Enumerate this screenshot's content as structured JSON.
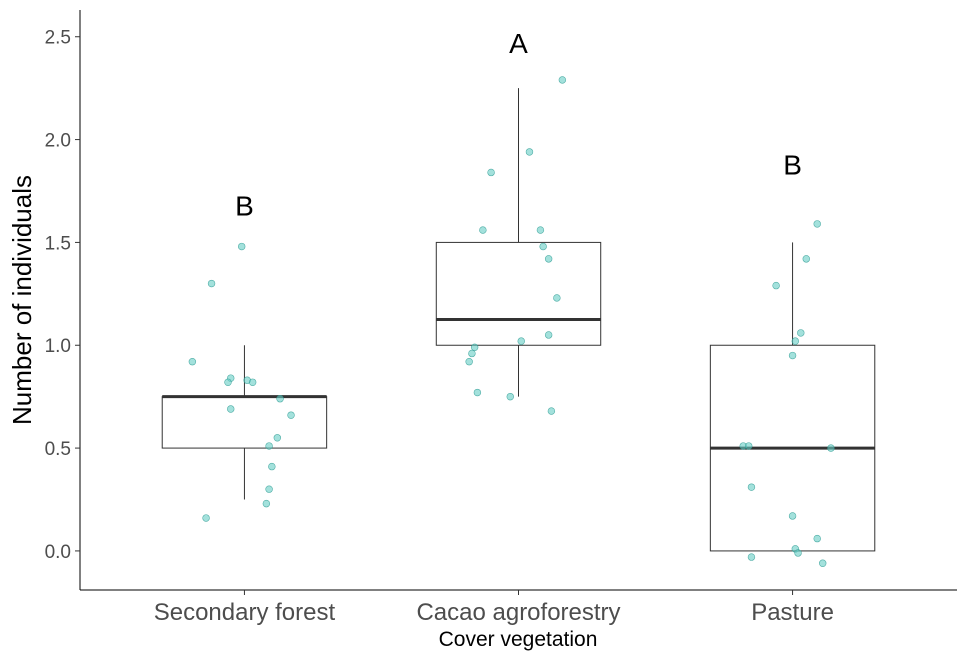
{
  "chart_data": {
    "type": "boxplot",
    "xlabel": "Cover vegetation",
    "ylabel": "Number of individuals",
    "ylim": [
      -0.19,
      2.63
    ],
    "yticks": [
      "0.0",
      "0.5",
      "1.0",
      "1.5",
      "2.0",
      "2.5"
    ],
    "ytick_values": [
      0,
      0.5,
      1.0,
      1.5,
      2.0,
      2.5
    ],
    "categories": [
      "Secondary forest",
      "Cacao agroforestry",
      "Pasture"
    ],
    "grid": false,
    "point_color": "#66CDC4",
    "boxes": [
      {
        "category": "Secondary forest",
        "whisker_low": 0.25,
        "q1": 0.5,
        "median": 0.75,
        "q3": 0.75,
        "whisker_high": 1.0,
        "letter": "B",
        "letter_y": 1.68
      },
      {
        "category": "Cacao agroforestry",
        "whisker_low": 0.75,
        "q1": 1.0,
        "median": 1.125,
        "q3": 1.5,
        "whisker_high": 2.25,
        "letter": "A",
        "letter_y": 2.47
      },
      {
        "category": "Pasture",
        "whisker_low": 0.0,
        "q1": 0.0,
        "median": 0.5,
        "q3": 1.0,
        "whisker_high": 1.5,
        "letter": "B",
        "letter_y": 1.88
      }
    ],
    "points": [
      [
        [
          -0.01,
          1.48
        ],
        [
          -0.12,
          1.3
        ],
        [
          -0.19,
          0.92
        ],
        [
          -0.05,
          0.84
        ],
        [
          -0.06,
          0.82
        ],
        [
          0.01,
          0.83
        ],
        [
          0.03,
          0.82
        ],
        [
          0.13,
          0.74
        ],
        [
          -0.05,
          0.69
        ],
        [
          0.17,
          0.66
        ],
        [
          0.12,
          0.55
        ],
        [
          0.09,
          0.51
        ],
        [
          0.1,
          0.41
        ],
        [
          0.09,
          0.3
        ],
        [
          0.08,
          0.23
        ],
        [
          -0.14,
          0.16
        ]
      ],
      [
        [
          0.16,
          2.29
        ],
        [
          0.04,
          1.94
        ],
        [
          -0.1,
          1.84
        ],
        [
          -0.13,
          1.56
        ],
        [
          0.08,
          1.56
        ],
        [
          0.09,
          1.48
        ],
        [
          0.11,
          1.42
        ],
        [
          0.14,
          1.23
        ],
        [
          0.11,
          1.05
        ],
        [
          0.01,
          1.02
        ],
        [
          -0.16,
          0.99
        ],
        [
          -0.17,
          0.96
        ],
        [
          -0.18,
          0.92
        ],
        [
          -0.15,
          0.77
        ],
        [
          -0.03,
          0.75
        ],
        [
          0.12,
          0.68
        ]
      ],
      [
        [
          0.09,
          1.59
        ],
        [
          0.05,
          1.42
        ],
        [
          -0.06,
          1.29
        ],
        [
          0.03,
          1.06
        ],
        [
          0.01,
          1.02
        ],
        [
          0.0,
          0.95
        ],
        [
          -0.18,
          0.51
        ],
        [
          -0.16,
          0.51
        ],
        [
          0.14,
          0.5
        ],
        [
          -0.15,
          0.31
        ],
        [
          0.0,
          0.17
        ],
        [
          0.09,
          0.06
        ],
        [
          0.01,
          0.01
        ],
        [
          0.02,
          -0.01
        ],
        [
          -0.15,
          -0.03
        ],
        [
          0.11,
          -0.06
        ]
      ]
    ]
  }
}
